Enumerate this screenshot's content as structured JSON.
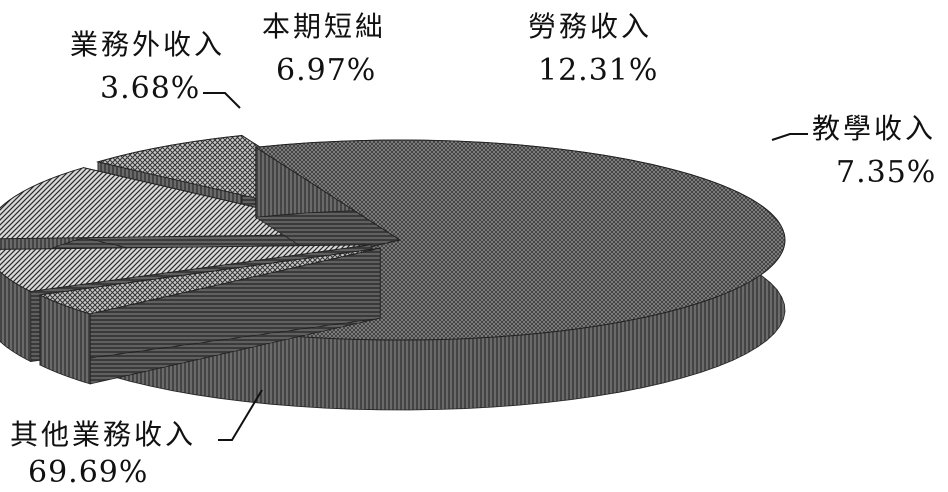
{
  "chart_data": {
    "type": "pie",
    "style": "3d-exploded",
    "slices": [
      {
        "label": "其他業務收入",
        "value": 69.69,
        "value_label": "69.69%"
      },
      {
        "label": "業務外收入",
        "value": 3.68,
        "value_label": "3.68%"
      },
      {
        "label": "本期短絀",
        "value": 6.97,
        "value_label": "6.97%"
      },
      {
        "label": "勞務收入",
        "value": 12.31,
        "value_label": "12.31%"
      },
      {
        "label": "教學收入",
        "value": 7.35,
        "value_label": "7.35%"
      }
    ]
  }
}
